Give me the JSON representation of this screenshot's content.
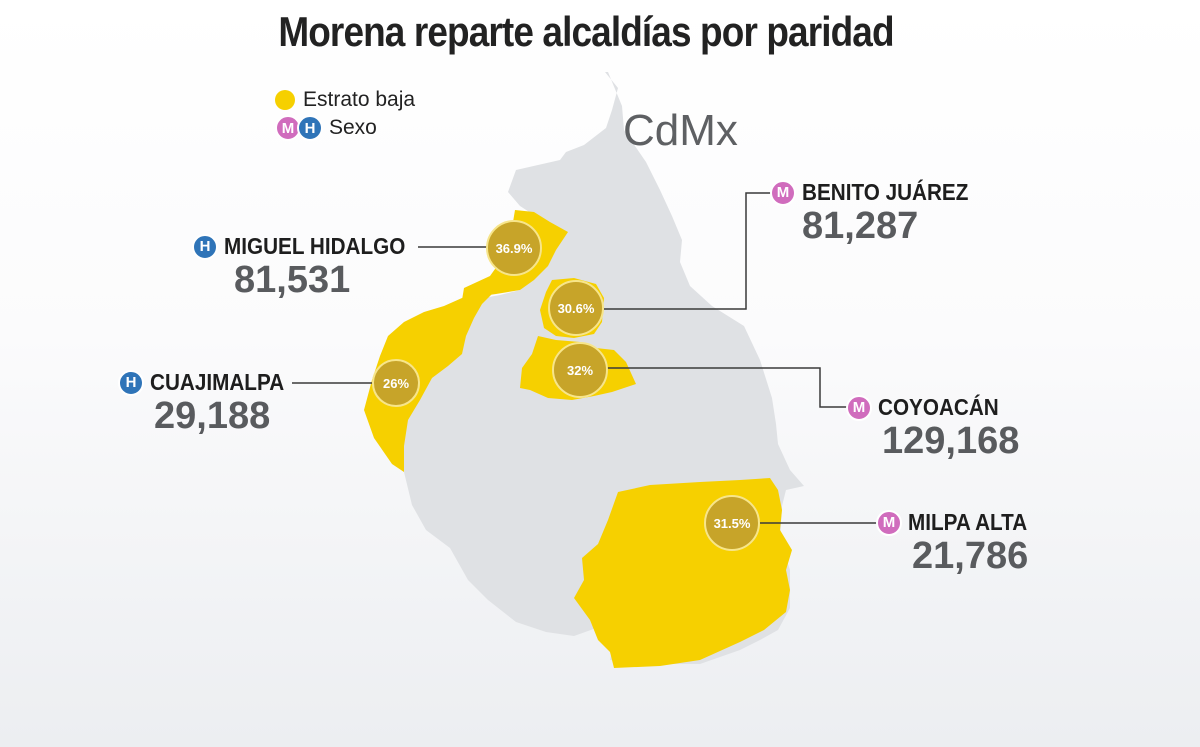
{
  "title": "Morena reparte alcaldías por paridad",
  "map_label": "CdMx",
  "legend": {
    "estrato_label": "Estrato baja",
    "sexo_label": "Sexo",
    "m_letter": "M",
    "h_letter": "H"
  },
  "colors": {
    "estrato_baja": "#f6d000",
    "map_gray": "#dfe1e4",
    "circle": "#c7a429",
    "mujer": "#d06cbd",
    "hombre": "#2f74b8"
  },
  "alcaldias": [
    {
      "name": "MIGUEL HIDALGO",
      "sexo": "H",
      "value": "81,531",
      "pct": "36.9%"
    },
    {
      "name": "BENITO JUÁREZ",
      "sexo": "M",
      "value": "81,287",
      "pct": "30.6%"
    },
    {
      "name": "CUAJIMALPA",
      "sexo": "H",
      "value": "29,188",
      "pct": "26%"
    },
    {
      "name": "COYOACÁN",
      "sexo": "M",
      "value": "129,168",
      "pct": "32%"
    },
    {
      "name": "MILPA ALTA",
      "sexo": "M",
      "value": "21,786",
      "pct": "31.5%"
    }
  ]
}
